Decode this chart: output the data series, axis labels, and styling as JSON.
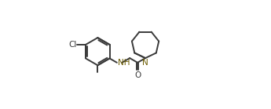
{
  "background_color": "#ffffff",
  "bond_color": "#3a3a3a",
  "atom_color_N": "#6b5b00",
  "atom_color_O": "#3a3a3a",
  "atom_color_NH": "#6b5b00",
  "line_width": 1.4,
  "figsize": [
    3.45,
    1.39
  ],
  "dpi": 100,
  "xlim": [
    0.0,
    1.0
  ],
  "ylim": [
    0.05,
    0.95
  ]
}
